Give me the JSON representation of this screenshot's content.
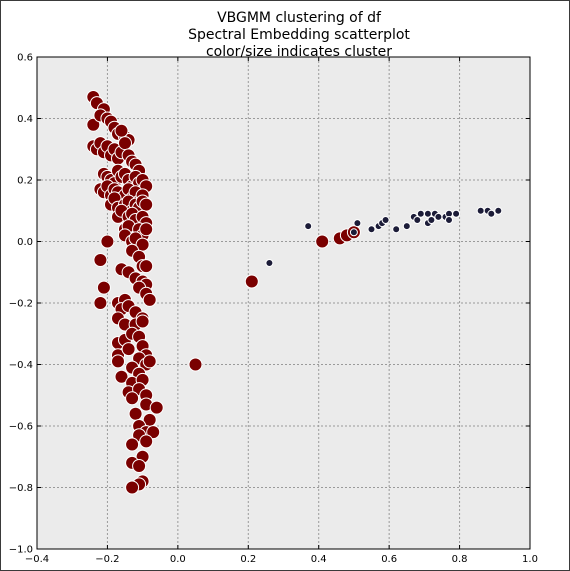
{
  "chart_data": {
    "type": "scatter",
    "title_lines": [
      "VBGMM clustering of df",
      "Spectral Embedding scatterplot",
      "color/size indicates cluster"
    ],
    "xlabel": "",
    "ylabel": "",
    "xlim": [
      -0.4,
      1.0
    ],
    "ylim": [
      -1.0,
      0.6
    ],
    "xticks": [
      -0.4,
      -0.2,
      0.0,
      0.2,
      0.4,
      0.6,
      0.8,
      1.0
    ],
    "yticks": [
      -1.0,
      -0.8,
      -0.6,
      -0.4,
      -0.2,
      0.0,
      0.2,
      0.4,
      0.6
    ],
    "xtick_labels": [
      "−0.4",
      "−0.2",
      "0.0",
      "0.2",
      "0.4",
      "0.6",
      "0.8",
      "1.0"
    ],
    "ytick_labels": [
      "−1.0",
      "−0.8",
      "−0.6",
      "−0.4",
      "−0.2",
      "0.0",
      "0.2",
      "0.4",
      "0.6"
    ],
    "grid": true,
    "colors": {
      "plot_background": "#ebebeb",
      "grid": "#9a9a9a",
      "cluster_large": "#7a0000",
      "cluster_small": "#1c1c38",
      "marker_edge": "#ffffff"
    },
    "series": [
      {
        "marker_size": "large",
        "x": [
          -0.24,
          -0.23,
          -0.24,
          -0.21,
          -0.22,
          -0.2,
          -0.19,
          -0.18,
          -0.17,
          -0.15,
          -0.14,
          -0.16,
          -0.24,
          -0.23,
          -0.22,
          -0.21,
          -0.2,
          -0.19,
          -0.18,
          -0.17,
          -0.16,
          -0.15,
          -0.14,
          -0.13,
          -0.12,
          -0.11,
          -0.21,
          -0.2,
          -0.19,
          -0.18,
          -0.17,
          -0.16,
          -0.15,
          -0.14,
          -0.13,
          -0.12,
          -0.11,
          -0.1,
          -0.09,
          -0.22,
          -0.21,
          -0.2,
          -0.19,
          -0.18,
          -0.17,
          -0.16,
          -0.15,
          -0.14,
          -0.13,
          -0.12,
          -0.11,
          -0.1,
          -0.19,
          -0.18,
          -0.17,
          -0.15,
          -0.14,
          -0.13,
          -0.12,
          -0.11,
          -0.1,
          -0.09,
          -0.17,
          -0.16,
          -0.14,
          -0.13,
          -0.12,
          -0.1,
          -0.09,
          -0.15,
          -0.14,
          -0.11,
          -0.1,
          -0.09,
          -0.2,
          -0.15,
          -0.13,
          -0.12,
          -0.1,
          -0.22,
          -0.21,
          -0.13,
          -0.11,
          -0.1,
          -0.09,
          -0.16,
          -0.14,
          -0.12,
          -0.1,
          -0.09,
          -0.22,
          -0.17,
          -0.15,
          -0.11,
          -0.09,
          -0.08,
          -0.16,
          -0.14,
          -0.12,
          -0.1,
          -0.17,
          -0.15,
          -0.12,
          -0.1,
          -0.17,
          -0.15,
          -0.13,
          -0.11,
          -0.17,
          -0.14,
          -0.1,
          -0.09,
          -0.17,
          -0.11,
          -0.09,
          -0.13,
          -0.11,
          -0.08,
          -0.16,
          -0.13,
          -0.1,
          -0.14,
          -0.11,
          -0.09,
          -0.13,
          -0.09,
          -0.06,
          -0.12,
          -0.08,
          -0.11,
          -0.09,
          -0.07,
          -0.11,
          -0.09,
          -0.13,
          -0.1,
          -0.13,
          -0.11,
          -0.1,
          -0.11,
          -0.13,
          0.05,
          0.21,
          0.41,
          0.46,
          0.48,
          0.5
        ],
        "y": [
          0.47,
          0.45,
          0.38,
          0.43,
          0.41,
          0.4,
          0.39,
          0.37,
          0.35,
          0.34,
          0.33,
          0.36,
          0.31,
          0.3,
          0.32,
          0.29,
          0.31,
          0.28,
          0.3,
          0.27,
          0.29,
          0.32,
          0.28,
          0.26,
          0.25,
          0.23,
          0.22,
          0.21,
          0.2,
          0.19,
          0.23,
          0.21,
          0.22,
          0.2,
          0.18,
          0.21,
          0.19,
          0.2,
          0.18,
          0.17,
          0.16,
          0.18,
          0.15,
          0.17,
          0.16,
          0.14,
          0.15,
          0.17,
          0.14,
          0.16,
          0.13,
          0.15,
          0.12,
          0.14,
          0.11,
          0.12,
          0.13,
          0.1,
          0.12,
          0.11,
          0.13,
          0.12,
          0.08,
          0.1,
          0.08,
          0.09,
          0.07,
          0.08,
          0.06,
          0.04,
          0.05,
          0.04,
          0.02,
          0.04,
          0.0,
          0.02,
          0.0,
          0.01,
          -0.01,
          -0.06,
          -0.15,
          -0.03,
          -0.05,
          -0.08,
          -0.08,
          -0.09,
          -0.1,
          -0.12,
          -0.13,
          -0.14,
          -0.2,
          -0.2,
          -0.19,
          -0.15,
          -0.17,
          -0.19,
          -0.22,
          -0.21,
          -0.23,
          -0.25,
          -0.25,
          -0.27,
          -0.27,
          -0.26,
          -0.33,
          -0.32,
          -0.3,
          -0.31,
          -0.37,
          -0.35,
          -0.34,
          -0.37,
          -0.39,
          -0.38,
          -0.4,
          -0.41,
          -0.43,
          -0.39,
          -0.44,
          -0.46,
          -0.45,
          -0.49,
          -0.48,
          -0.5,
          -0.51,
          -0.53,
          -0.54,
          -0.56,
          -0.58,
          -0.6,
          -0.62,
          -0.62,
          -0.63,
          -0.65,
          -0.66,
          -0.7,
          -0.72,
          -0.73,
          -0.78,
          -0.79,
          -0.8,
          -0.4,
          -0.13,
          0.0,
          0.01,
          0.02,
          0.03
        ]
      },
      {
        "marker_size": "small",
        "x": [
          0.26,
          0.37,
          0.5,
          0.51,
          0.55,
          0.57,
          0.58,
          0.59,
          0.62,
          0.65,
          0.67,
          0.68,
          0.69,
          0.71,
          0.71,
          0.72,
          0.73,
          0.74,
          0.76,
          0.77,
          0.77,
          0.79,
          0.86,
          0.88,
          0.89,
          0.91
        ],
        "y": [
          -0.07,
          0.05,
          0.03,
          0.06,
          0.04,
          0.05,
          0.06,
          0.07,
          0.04,
          0.05,
          0.08,
          0.07,
          0.09,
          0.06,
          0.09,
          0.07,
          0.09,
          0.08,
          0.08,
          0.09,
          0.07,
          0.09,
          0.1,
          0.1,
          0.09,
          0.1
        ]
      }
    ]
  }
}
